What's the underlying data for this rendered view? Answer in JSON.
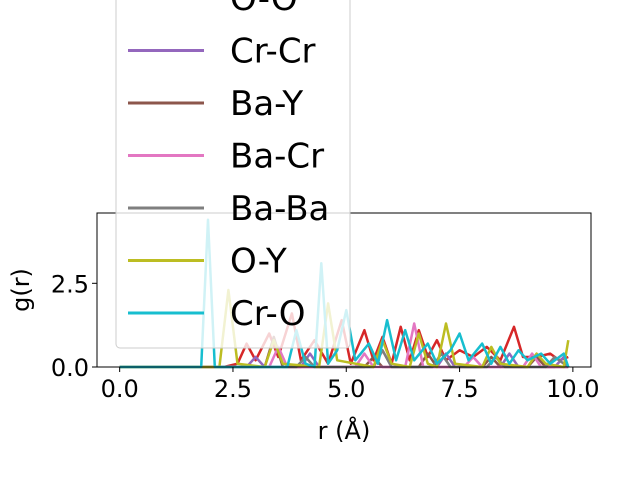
{
  "chart_data": {
    "type": "line",
    "xlabel": "r (Å)",
    "ylabel": "g(r)",
    "xlim": [
      -0.5,
      10.4
    ],
    "ylim": [
      0,
      4.6
    ],
    "x_ticks": [
      0.0,
      2.5,
      5.0,
      7.5,
      10.0
    ],
    "x_tick_labels": [
      "0.0",
      "2.5",
      "5.0",
      "7.5",
      "10.0"
    ],
    "y_ticks": [
      0.0,
      2.5
    ],
    "y_tick_labels": [
      "0.0",
      "2.5"
    ],
    "grid": false,
    "legend_position": "upper-left, partially overlapping the plot",
    "series": [
      {
        "name": "O-O",
        "color": "#d62728",
        "points": [
          [
            0,
            0
          ],
          [
            2.3,
            0
          ],
          [
            2.6,
            0.1
          ],
          [
            2.8,
            0.7
          ],
          [
            3.0,
            0.2
          ],
          [
            3.3,
            1.0
          ],
          [
            3.5,
            0.3
          ],
          [
            3.8,
            1.6
          ],
          [
            4.0,
            0.2
          ],
          [
            4.3,
            0.8
          ],
          [
            4.6,
            0.1
          ],
          [
            4.9,
            1.4
          ],
          [
            5.1,
            0.1
          ],
          [
            5.4,
            1.1
          ],
          [
            5.6,
            0.2
          ],
          [
            5.8,
            0.9
          ],
          [
            6.0,
            0.1
          ],
          [
            6.2,
            1.2
          ],
          [
            6.4,
            0.2
          ],
          [
            6.6,
            1.1
          ],
          [
            6.8,
            0.3
          ],
          [
            7.0,
            0.8
          ],
          [
            7.2,
            0.2
          ],
          [
            7.5,
            0.5
          ],
          [
            7.8,
            0.3
          ],
          [
            8.1,
            0.6
          ],
          [
            8.4,
            0.2
          ],
          [
            8.7,
            1.2
          ],
          [
            8.9,
            0.3
          ],
          [
            9.2,
            0.3
          ],
          [
            9.5,
            0.4
          ],
          [
            9.7,
            0.2
          ],
          [
            9.9,
            0.3
          ]
        ]
      },
      {
        "name": "Cr-Cr",
        "color": "#9467bd",
        "points": [
          [
            0,
            0
          ],
          [
            2.8,
            0
          ],
          [
            3.0,
            0.3
          ],
          [
            3.2,
            0.0
          ],
          [
            4.0,
            0.0
          ],
          [
            4.2,
            0.4
          ],
          [
            4.4,
            0.0
          ],
          [
            5.6,
            0.0
          ],
          [
            5.8,
            0.5
          ],
          [
            6.0,
            0.0
          ],
          [
            7.0,
            0.0
          ],
          [
            7.2,
            0.4
          ],
          [
            7.4,
            0.0
          ],
          [
            8.4,
            0.0
          ],
          [
            8.6,
            0.4
          ],
          [
            8.8,
            0.0
          ],
          [
            9.6,
            0.0
          ],
          [
            9.8,
            0.3
          ],
          [
            9.9,
            0.0
          ]
        ]
      },
      {
        "name": "Ba-Y",
        "color": "#8c564b",
        "points": [
          [
            0,
            0
          ],
          [
            3.2,
            0
          ],
          [
            3.4,
            0.9
          ],
          [
            3.6,
            0.0
          ],
          [
            5.4,
            0.0
          ],
          [
            5.6,
            0.3
          ],
          [
            5.8,
            0.0
          ],
          [
            6.6,
            0.0
          ],
          [
            6.8,
            0.4
          ],
          [
            7.0,
            0.0
          ],
          [
            8.0,
            0.0
          ],
          [
            8.2,
            0.3
          ],
          [
            8.4,
            0.0
          ],
          [
            9.0,
            0.0
          ],
          [
            9.2,
            0.3
          ],
          [
            9.4,
            0.0
          ],
          [
            9.9,
            0.0
          ]
        ]
      },
      {
        "name": "Ba-Cr",
        "color": "#e377c2",
        "points": [
          [
            0,
            0
          ],
          [
            3.3,
            0
          ],
          [
            3.5,
            0.6
          ],
          [
            3.7,
            0.0
          ],
          [
            5.2,
            0.0
          ],
          [
            5.4,
            0.4
          ],
          [
            5.6,
            0.0
          ],
          [
            6.3,
            0.0
          ],
          [
            6.5,
            1.3
          ],
          [
            6.7,
            0.0
          ],
          [
            7.6,
            0.0
          ],
          [
            7.8,
            0.3
          ],
          [
            8.0,
            0.0
          ],
          [
            8.9,
            0.0
          ],
          [
            9.1,
            0.4
          ],
          [
            9.3,
            0.0
          ],
          [
            9.9,
            0.0
          ]
        ]
      },
      {
        "name": "Ba-Ba",
        "color": "#7f7f7f",
        "points": [
          [
            0,
            0
          ],
          [
            3.9,
            0
          ],
          [
            4.1,
            0.3
          ],
          [
            4.3,
            0.0
          ],
          [
            5.6,
            0.0
          ],
          [
            5.8,
            0.5
          ],
          [
            6.0,
            0.0
          ],
          [
            6.9,
            0.0
          ],
          [
            7.1,
            0.4
          ],
          [
            7.3,
            0.0
          ],
          [
            8.1,
            0.0
          ],
          [
            8.3,
            0.3
          ],
          [
            8.5,
            0.0
          ],
          [
            9.4,
            0.0
          ],
          [
            9.6,
            0.3
          ],
          [
            9.9,
            0.0
          ]
        ]
      },
      {
        "name": "O-Y",
        "color": "#bcbd22",
        "points": [
          [
            0,
            0
          ],
          [
            2.2,
            0
          ],
          [
            2.4,
            2.3
          ],
          [
            2.6,
            0.1
          ],
          [
            3.2,
            0.0
          ],
          [
            3.4,
            0.8
          ],
          [
            3.6,
            0.1
          ],
          [
            4.4,
            0.0
          ],
          [
            4.6,
            1.9
          ],
          [
            4.8,
            0.2
          ],
          [
            5.6,
            0.0
          ],
          [
            5.8,
            0.8
          ],
          [
            6.0,
            0.1
          ],
          [
            6.4,
            0.0
          ],
          [
            6.6,
            1.0
          ],
          [
            6.8,
            0.1
          ],
          [
            7.0,
            0.0
          ],
          [
            7.2,
            1.3
          ],
          [
            7.4,
            0.1
          ],
          [
            8.0,
            0.0
          ],
          [
            8.2,
            0.6
          ],
          [
            8.4,
            0.1
          ],
          [
            9.0,
            0.0
          ],
          [
            9.2,
            0.4
          ],
          [
            9.4,
            0.1
          ],
          [
            9.8,
            0.0
          ],
          [
            9.9,
            0.8
          ]
        ]
      },
      {
        "name": "Cr-O",
        "color": "#17becf",
        "points": [
          [
            0,
            0
          ],
          [
            1.8,
            0
          ],
          [
            1.95,
            4.4
          ],
          [
            2.1,
            0.0
          ],
          [
            3.7,
            0.0
          ],
          [
            3.9,
            1.1
          ],
          [
            4.1,
            0.1
          ],
          [
            4.3,
            0.0
          ],
          [
            4.45,
            3.1
          ],
          [
            4.6,
            0.1
          ],
          [
            4.8,
            0.5
          ],
          [
            5.0,
            1.7
          ],
          [
            5.2,
            0.2
          ],
          [
            5.5,
            0.7
          ],
          [
            5.7,
            0.1
          ],
          [
            5.9,
            1.4
          ],
          [
            6.1,
            0.2
          ],
          [
            6.3,
            1.1
          ],
          [
            6.5,
            0.2
          ],
          [
            6.8,
            0.7
          ],
          [
            7.0,
            0.1
          ],
          [
            7.3,
            0.5
          ],
          [
            7.5,
            1.0
          ],
          [
            7.7,
            0.2
          ],
          [
            8.0,
            0.7
          ],
          [
            8.2,
            0.1
          ],
          [
            8.4,
            0.6
          ],
          [
            8.6,
            0.1
          ],
          [
            8.8,
            0.5
          ],
          [
            9.0,
            0.2
          ],
          [
            9.3,
            0.4
          ],
          [
            9.5,
            0.1
          ],
          [
            9.8,
            0.4
          ],
          [
            9.9,
            0.0
          ]
        ]
      }
    ]
  }
}
